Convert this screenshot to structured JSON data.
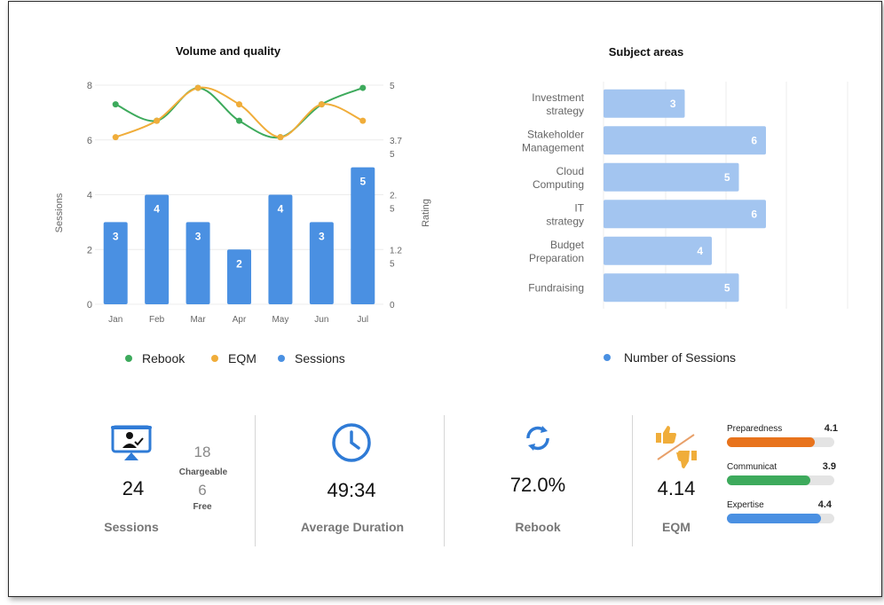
{
  "chart_data": [
    {
      "type": "bar+line",
      "title": "Volume and quality",
      "categories": [
        "Jan",
        "Feb",
        "Mar",
        "Apr",
        "May",
        "Jun",
        "Jul"
      ],
      "y_left": {
        "label": "Sessions",
        "ticks": [
          "0",
          "2",
          "4",
          "6",
          "8"
        ],
        "range": [
          0,
          8
        ]
      },
      "y_right": {
        "label": "Rating",
        "ticks": [
          "0",
          "1.2\n5",
          "2.\n5",
          "3.7\n5",
          "5"
        ],
        "range": [
          0,
          5
        ]
      },
      "series": [
        {
          "name": "Sessions",
          "kind": "bar",
          "axis": "left",
          "values": [
            3,
            4,
            3,
            2,
            4,
            3,
            5
          ],
          "color": "#4a90e2"
        },
        {
          "name": "Rebook",
          "kind": "line",
          "axis": "left",
          "values": [
            7.3,
            6.7,
            7.9,
            6.7,
            6.1,
            7.3,
            7.9
          ],
          "color": "#3daa5c"
        },
        {
          "name": "EQM",
          "kind": "line",
          "axis": "left",
          "values": [
            6.1,
            6.7,
            7.9,
            7.3,
            6.1,
            7.3,
            6.7
          ],
          "color": "#f0ad3a"
        }
      ],
      "legend": [
        "Rebook",
        "EQM",
        "Sessions"
      ],
      "legend_position": "bottom",
      "grid": true
    },
    {
      "type": "bar",
      "orientation": "horizontal",
      "title": "Subject areas",
      "categories": [
        [
          "Investment",
          "strategy"
        ],
        [
          "Stakeholder",
          "Management"
        ],
        [
          "Cloud",
          "Computing"
        ],
        [
          "IT",
          "strategy"
        ],
        [
          "Budget",
          "Preparation"
        ],
        [
          "Fundraising"
        ]
      ],
      "values": [
        3,
        6,
        5,
        6,
        4,
        5
      ],
      "xlim": [
        0,
        6
      ],
      "series": [
        {
          "name": "Number of Sessions",
          "color": "#a3c5f0"
        }
      ],
      "legend_position": "bottom",
      "grid": true
    }
  ],
  "kpis": {
    "sessions": {
      "value": "24",
      "label": "Sessions",
      "chargeable": "18",
      "chargeable_label": "Chargeable",
      "free": "6",
      "free_label": "Free",
      "icon": "presentation-screen-icon"
    },
    "duration": {
      "value": "49:34",
      "label": "Average Duration",
      "icon": "clock-icon"
    },
    "rebook": {
      "value": "72.0%",
      "label": "Rebook",
      "icon": "refresh-arrows-icon"
    },
    "eqm": {
      "value": "4.14",
      "label": "EQM",
      "icon": "thumbs-up-down-icon",
      "metrics": [
        {
          "label": "Preparedness",
          "value": "4.1",
          "level": 4.1,
          "max": 5,
          "color": "#e8731c"
        },
        {
          "label": "Communicat",
          "value": "3.9",
          "level": 3.9,
          "max": 5,
          "color": "#3daa5c"
        },
        {
          "label": "Expertise",
          "value": "4.4",
          "level": 4.4,
          "max": 5,
          "color": "#4a90e2"
        }
      ]
    }
  }
}
